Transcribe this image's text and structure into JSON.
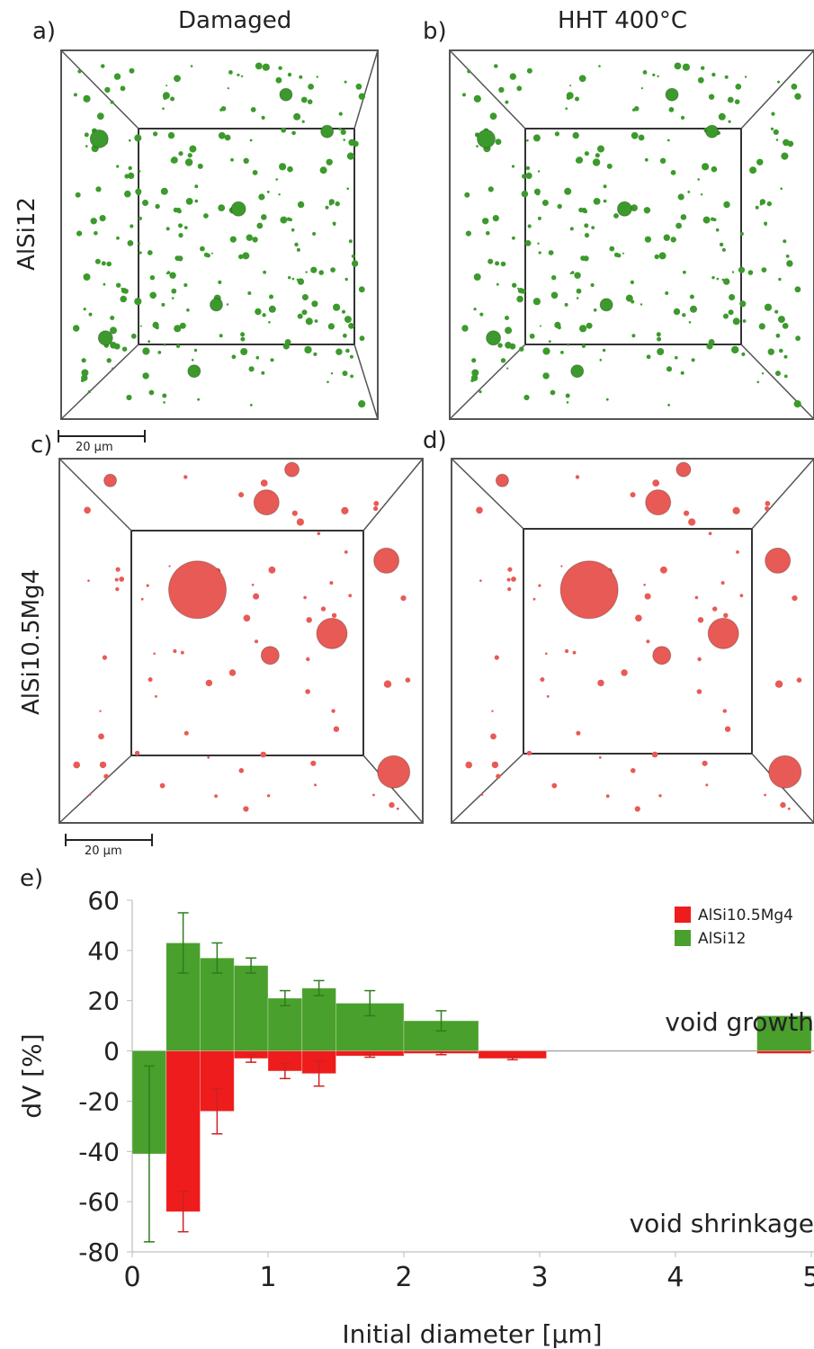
{
  "panels": {
    "a": {
      "letter": "a)",
      "title": "Damaged"
    },
    "b": {
      "letter": "b)",
      "title": "HHT 400°C"
    },
    "c": {
      "letter": "c)"
    },
    "d": {
      "letter": "d)"
    },
    "e": {
      "letter": "e)"
    }
  },
  "rows": {
    "top": "AlSi12",
    "bottom": "AlSi10.5Mg4"
  },
  "scale_bar_label": "20 µm",
  "colors": {
    "alsi12": "#4aa02c",
    "alsi105mg4": "#ee1c1c",
    "pores_green": "#3c9a2c",
    "pores_red": "#e85a55"
  },
  "chart_data": {
    "type": "bar",
    "xlabel": "Initial diameter [µm]",
    "ylabel": "dV [%]",
    "xlim": [
      0,
      5
    ],
    "ylim": [
      -80,
      60
    ],
    "xticks": [
      "0",
      "1",
      "2",
      "3",
      "4",
      "5"
    ],
    "yticks": [
      "60",
      "40",
      "20",
      "0",
      "-20",
      "-40",
      "-60",
      "-80"
    ],
    "annotations": {
      "upper": "void growth",
      "lower": "void shrinkage"
    },
    "legend": {
      "position": "top-right",
      "entries": [
        "AlSi10.5Mg4",
        "AlSi12"
      ]
    },
    "series": [
      {
        "name": "AlSi12",
        "bars": [
          {
            "x0": 0.0,
            "x1": 0.25,
            "value": -41,
            "err": 35
          },
          {
            "x0": 0.25,
            "x1": 0.5,
            "value": 43,
            "err": 12
          },
          {
            "x0": 0.5,
            "x1": 0.75,
            "value": 37,
            "err": 6
          },
          {
            "x0": 0.75,
            "x1": 1.0,
            "value": 34,
            "err": 3
          },
          {
            "x0": 1.0,
            "x1": 1.25,
            "value": 21,
            "err": 3
          },
          {
            "x0": 1.25,
            "x1": 1.5,
            "value": 25,
            "err": 3
          },
          {
            "x0": 1.5,
            "x1": 2.0,
            "value": 19,
            "err": 5
          },
          {
            "x0": 2.0,
            "x1": 2.55,
            "value": 12,
            "err": 4
          },
          {
            "x0": 4.6,
            "x1": 5.0,
            "value": 14,
            "err": 0
          }
        ]
      },
      {
        "name": "AlSi10.5Mg4",
        "bars": [
          {
            "x0": 0.25,
            "x1": 0.5,
            "value": -64,
            "err": 8
          },
          {
            "x0": 0.5,
            "x1": 0.75,
            "value": -24,
            "err": 9
          },
          {
            "x0": 0.75,
            "x1": 1.0,
            "value": -3,
            "err": 1.5
          },
          {
            "x0": 1.0,
            "x1": 1.25,
            "value": -8,
            "err": 3
          },
          {
            "x0": 1.25,
            "x1": 1.5,
            "value": -9,
            "err": 5
          },
          {
            "x0": 1.5,
            "x1": 2.0,
            "value": -2,
            "err": 0.5
          },
          {
            "x0": 2.0,
            "x1": 2.55,
            "value": -1,
            "err": 0.5
          },
          {
            "x0": 2.55,
            "x1": 3.05,
            "value": -3,
            "err": 0.5
          },
          {
            "x0": 4.6,
            "x1": 5.0,
            "value": -1,
            "err": 0
          }
        ]
      }
    ]
  }
}
